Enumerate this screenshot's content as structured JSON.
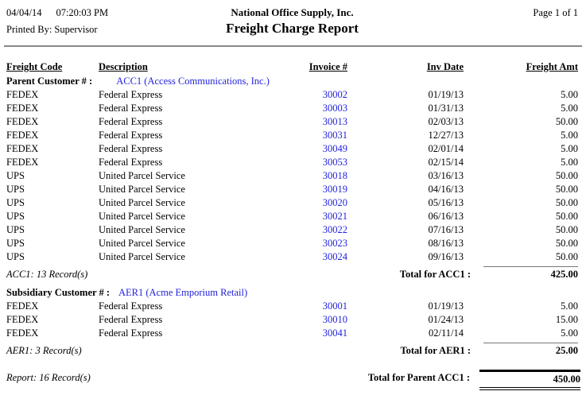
{
  "header": {
    "date": "04/04/14",
    "time": "07:20:03 PM",
    "company": "National Office Supply, Inc.",
    "page": "Page 1 of 1",
    "printed_by": "Printed By: Supervisor",
    "title": "Freight Charge Report"
  },
  "columns": {
    "freight_code": "Freight Code",
    "description": "Description",
    "invoice": "Invoice #",
    "inv_date": "Inv Date",
    "freight_amt": "Freight Amt"
  },
  "colors": {
    "link_blue": "#2222dd",
    "rule_gray": "#888888",
    "text": "#000000"
  },
  "sections": [
    {
      "label": "Parent Customer # :",
      "customer": "ACC1 (Access Communications, Inc.)",
      "rows": [
        {
          "code": "FEDEX",
          "desc": "Federal Express",
          "invoice": "30002",
          "date": "01/19/13",
          "amount": "5.00"
        },
        {
          "code": "FEDEX",
          "desc": "Federal Express",
          "invoice": "30003",
          "date": "01/31/13",
          "amount": "5.00"
        },
        {
          "code": "FEDEX",
          "desc": "Federal Express",
          "invoice": "30013",
          "date": "02/03/13",
          "amount": "50.00"
        },
        {
          "code": "FEDEX",
          "desc": "Federal Express",
          "invoice": "30031",
          "date": "12/27/13",
          "amount": "5.00"
        },
        {
          "code": "FEDEX",
          "desc": "Federal Express",
          "invoice": "30049",
          "date": "02/01/14",
          "amount": "5.00"
        },
        {
          "code": "FEDEX",
          "desc": "Federal Express",
          "invoice": "30053",
          "date": "02/15/14",
          "amount": "5.00"
        },
        {
          "code": "UPS",
          "desc": "United Parcel Service",
          "invoice": "30018",
          "date": "03/16/13",
          "amount": "50.00"
        },
        {
          "code": "UPS",
          "desc": "United Parcel Service",
          "invoice": "30019",
          "date": "04/16/13",
          "amount": "50.00"
        },
        {
          "code": "UPS",
          "desc": "United Parcel Service",
          "invoice": "30020",
          "date": "05/16/13",
          "amount": "50.00"
        },
        {
          "code": "UPS",
          "desc": "United Parcel Service",
          "invoice": "30021",
          "date": "06/16/13",
          "amount": "50.00"
        },
        {
          "code": "UPS",
          "desc": "United Parcel Service",
          "invoice": "30022",
          "date": "07/16/13",
          "amount": "50.00"
        },
        {
          "code": "UPS",
          "desc": "United Parcel Service",
          "invoice": "30023",
          "date": "08/16/13",
          "amount": "50.00"
        },
        {
          "code": "UPS",
          "desc": "United Parcel Service",
          "invoice": "30024",
          "date": "09/16/13",
          "amount": "50.00"
        }
      ],
      "footer": {
        "records": "ACC1: 13 Record(s)",
        "total_label": "Total for ACC1 :",
        "total": "425.00"
      }
    },
    {
      "label": "Subsidiary Customer # :",
      "customer": "AER1 (Acme Emporium Retail)",
      "rows": [
        {
          "code": "FEDEX",
          "desc": "Federal Express",
          "invoice": "30001",
          "date": "01/19/13",
          "amount": "5.00"
        },
        {
          "code": "FEDEX",
          "desc": "Federal Express",
          "invoice": "30010",
          "date": "01/24/13",
          "amount": "15.00"
        },
        {
          "code": "FEDEX",
          "desc": "Federal Express",
          "invoice": "30041",
          "date": "02/11/14",
          "amount": "5.00"
        }
      ],
      "footer": {
        "records": "AER1: 3 Record(s)",
        "total_label": "Total for AER1 :",
        "total": "25.00"
      }
    }
  ],
  "report_footer": {
    "records": "Report: 16 Record(s)",
    "total_label": "Total for Parent ACC1 :",
    "total": "450.00"
  }
}
